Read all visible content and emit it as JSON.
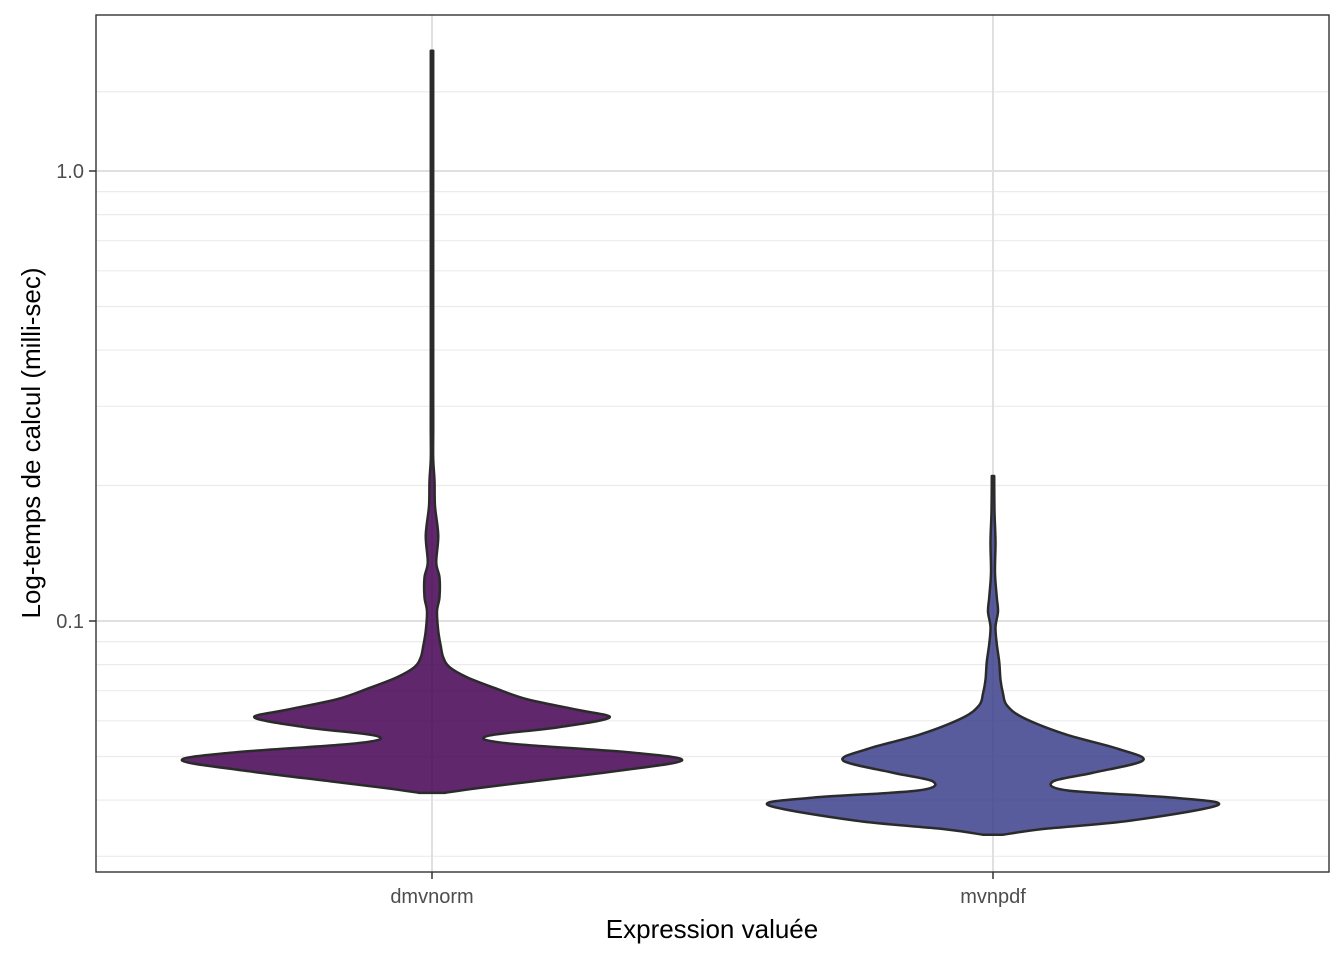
{
  "chart_data": {
    "type": "violin",
    "title": "",
    "xlabel": "Expression valuée",
    "ylabel": "Log-temps de calcul (milli-sec)",
    "y_scale": "log10",
    "ylim": [
      0.03,
      1.8
    ],
    "grid": true,
    "y_ticks": [
      {
        "value": 0.1,
        "label": "0.1"
      },
      {
        "value": 1.0,
        "label": "1.0"
      }
    ],
    "y_minor_grid": [
      0.03,
      0.04,
      0.05,
      0.06,
      0.07,
      0.08,
      0.09,
      0.2,
      0.3,
      0.4,
      0.5,
      0.6,
      0.7,
      0.8,
      0.9,
      1.5
    ],
    "categories": [
      "dmvnorm",
      "mvnpdf"
    ],
    "series": [
      {
        "category": "dmvnorm",
        "color": "#440154",
        "min": 0.0415,
        "max": 1.85,
        "profile": [
          {
            "y": 0.0415,
            "width": 0.05
          },
          {
            "y": 0.0425,
            "width": 0.18
          },
          {
            "y": 0.044,
            "width": 0.4
          },
          {
            "y": 0.0465,
            "width": 0.75
          },
          {
            "y": 0.049,
            "width": 1.0
          },
          {
            "y": 0.051,
            "width": 0.8
          },
          {
            "y": 0.0535,
            "width": 0.3
          },
          {
            "y": 0.0555,
            "width": 0.22
          },
          {
            "y": 0.058,
            "width": 0.5
          },
          {
            "y": 0.061,
            "width": 0.71
          },
          {
            "y": 0.0635,
            "width": 0.58
          },
          {
            "y": 0.067,
            "width": 0.38
          },
          {
            "y": 0.071,
            "width": 0.25
          },
          {
            "y": 0.075,
            "width": 0.14
          },
          {
            "y": 0.079,
            "width": 0.07
          },
          {
            "y": 0.083,
            "width": 0.045
          },
          {
            "y": 0.088,
            "width": 0.035
          },
          {
            "y": 0.095,
            "width": 0.025
          },
          {
            "y": 0.105,
            "width": 0.02
          },
          {
            "y": 0.113,
            "width": 0.03
          },
          {
            "y": 0.125,
            "width": 0.03
          },
          {
            "y": 0.135,
            "width": 0.017
          },
          {
            "y": 0.155,
            "width": 0.025
          },
          {
            "y": 0.18,
            "width": 0.012
          },
          {
            "y": 0.205,
            "width": 0.01
          },
          {
            "y": 0.23,
            "width": 0.004
          },
          {
            "y": 0.27,
            "width": 0.005
          },
          {
            "y": 0.32,
            "width": 0.002
          },
          {
            "y": 0.5,
            "width": 0.0015
          },
          {
            "y": 1.0,
            "width": 0.0015
          },
          {
            "y": 1.85,
            "width": 0.001
          }
        ]
      },
      {
        "category": "mvnpdf",
        "color": "#3b3f8c",
        "min": 0.0335,
        "max": 0.21,
        "profile": [
          {
            "y": 0.0335,
            "width": 0.04
          },
          {
            "y": 0.0345,
            "width": 0.2
          },
          {
            "y": 0.036,
            "width": 0.55
          },
          {
            "y": 0.039,
            "width": 0.9
          },
          {
            "y": 0.0405,
            "width": 0.72
          },
          {
            "y": 0.042,
            "width": 0.3
          },
          {
            "y": 0.044,
            "width": 0.24
          },
          {
            "y": 0.046,
            "width": 0.4
          },
          {
            "y": 0.049,
            "width": 0.6
          },
          {
            "y": 0.052,
            "width": 0.5
          },
          {
            "y": 0.056,
            "width": 0.29
          },
          {
            "y": 0.061,
            "width": 0.12
          },
          {
            "y": 0.065,
            "width": 0.055
          },
          {
            "y": 0.069,
            "width": 0.04
          },
          {
            "y": 0.074,
            "width": 0.03
          },
          {
            "y": 0.081,
            "width": 0.025
          },
          {
            "y": 0.089,
            "width": 0.015
          },
          {
            "y": 0.097,
            "width": 0.01
          },
          {
            "y": 0.105,
            "width": 0.02
          },
          {
            "y": 0.113,
            "width": 0.015
          },
          {
            "y": 0.128,
            "width": 0.008
          },
          {
            "y": 0.15,
            "width": 0.01
          },
          {
            "y": 0.175,
            "width": 0.006
          },
          {
            "y": 0.21,
            "width": 0.004
          }
        ]
      }
    ]
  }
}
